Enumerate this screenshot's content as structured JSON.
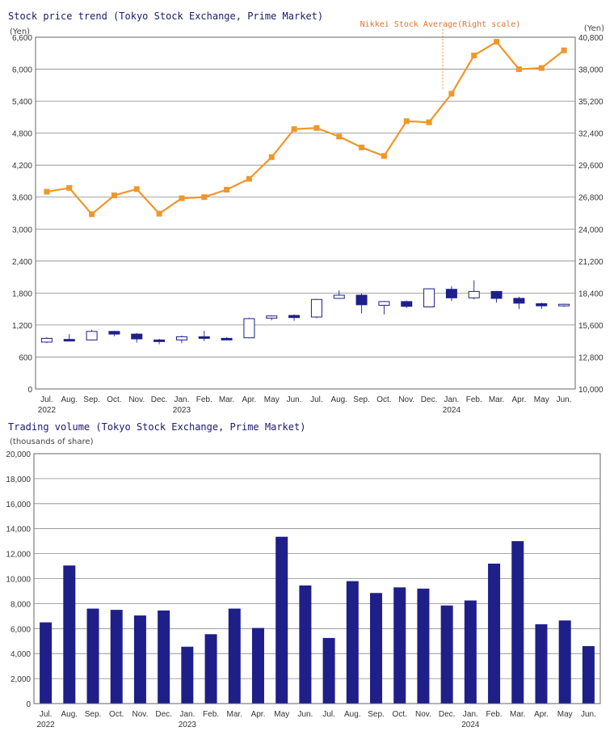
{
  "colors": {
    "navy": "#1f1f8a",
    "orange": "#f0962a",
    "annotation": "#e8722a",
    "title": "#1a1a6e"
  },
  "chart_data": [
    {
      "type": "candlestick",
      "title": "Stock price trend (Tokyo Stock Exchange, Prime Market)",
      "ylabel": "(Yen)",
      "y2label": "(Yen)",
      "ylim": [
        0,
        6600
      ],
      "y2lim": [
        10000,
        40800
      ],
      "yticks": [
        "0",
        "600",
        "1,200",
        "1,800",
        "2,400",
        "3,000",
        "3,600",
        "4,200",
        "4,800",
        "5,400",
        "6,000",
        "6,600"
      ],
      "y2ticks": [
        "10,000",
        "12,800",
        "15,600",
        "18,400",
        "21,200",
        "24,000",
        "26,800",
        "29,600",
        "32,400",
        "35,200",
        "38,000",
        "40,800"
      ],
      "categories": [
        "Jul.",
        "Aug.",
        "Sep.",
        "Oct.",
        "Nov.",
        "Dec.",
        "Jan.",
        "Feb.",
        "Mar.",
        "Apr.",
        "May",
        "Jun.",
        "Jul.",
        "Aug.",
        "Sep.",
        "Oct.",
        "Nov.",
        "Dec.",
        "Jan.",
        "Feb.",
        "Mar.",
        "Apr.",
        "May",
        "Jun."
      ],
      "year_labels": [
        {
          "index": 0,
          "label": "2022"
        },
        {
          "index": 6,
          "label": "2023"
        },
        {
          "index": 18,
          "label": "2024"
        }
      ],
      "candles": [
        {
          "open": 880,
          "close": 950,
          "high": 970,
          "low": 860
        },
        {
          "open": 930,
          "close": 900,
          "high": 1030,
          "low": 890
        },
        {
          "open": 920,
          "close": 1080,
          "high": 1110,
          "low": 910
        },
        {
          "open": 1080,
          "close": 1030,
          "high": 1090,
          "low": 990
        },
        {
          "open": 1030,
          "close": 940,
          "high": 1050,
          "low": 870
        },
        {
          "open": 920,
          "close": 910,
          "high": 940,
          "low": 840
        },
        {
          "open": 920,
          "close": 980,
          "high": 1000,
          "low": 860
        },
        {
          "open": 980,
          "close": 950,
          "high": 1090,
          "low": 900
        },
        {
          "open": 950,
          "close": 930,
          "high": 970,
          "low": 920
        },
        {
          "open": 960,
          "close": 1320,
          "high": 1340,
          "low": 950
        },
        {
          "open": 1330,
          "close": 1370,
          "high": 1380,
          "low": 1290
        },
        {
          "open": 1380,
          "close": 1340,
          "high": 1400,
          "low": 1280
        },
        {
          "open": 1350,
          "close": 1680,
          "high": 1690,
          "low": 1330
        },
        {
          "open": 1700,
          "close": 1760,
          "high": 1850,
          "low": 1690
        },
        {
          "open": 1760,
          "close": 1580,
          "high": 1790,
          "low": 1420
        },
        {
          "open": 1570,
          "close": 1640,
          "high": 1650,
          "low": 1400
        },
        {
          "open": 1640,
          "close": 1550,
          "high": 1660,
          "low": 1520
        },
        {
          "open": 1540,
          "close": 1880,
          "high": 1890,
          "low": 1530
        },
        {
          "open": 1870,
          "close": 1710,
          "high": 1930,
          "low": 1650
        },
        {
          "open": 1710,
          "close": 1830,
          "high": 2040,
          "low": 1680
        },
        {
          "open": 1830,
          "close": 1700,
          "high": 1840,
          "low": 1620
        },
        {
          "open": 1700,
          "close": 1610,
          "high": 1730,
          "low": 1500
        },
        {
          "open": 1600,
          "close": 1560,
          "high": 1620,
          "low": 1500
        },
        {
          "open": 1560,
          "close": 1590,
          "high": 1600,
          "low": 1540
        }
      ],
      "nikkei_series": {
        "name": "Nikkei Stock Average(Right scale)",
        "axis": "right",
        "values": [
          27270,
          27600,
          25300,
          26950,
          27500,
          25350,
          26700,
          26800,
          27450,
          28400,
          30300,
          32750,
          32850,
          32100,
          31150,
          30400,
          33450,
          33350,
          35850,
          39200,
          40400,
          38000,
          38100,
          39650
        ]
      }
    },
    {
      "type": "bar",
      "title": "Trading volume (Tokyo Stock Exchange, Prime Market)",
      "ylabel": "(thousands of share)",
      "ylim": [
        0,
        20000
      ],
      "yticks": [
        "0",
        "2,000",
        "4,000",
        "6,000",
        "8,000",
        "10,000",
        "12,000",
        "14,000",
        "16,000",
        "18,000",
        "20,000"
      ],
      "categories": [
        "Jul.",
        "Aug.",
        "Sep.",
        "Oct.",
        "Nov.",
        "Dec.",
        "Jan.",
        "Feb.",
        "Mar.",
        "Apr.",
        "May",
        "Jun.",
        "Jul.",
        "Aug.",
        "Sep.",
        "Oct.",
        "Nov.",
        "Dec.",
        "Jan.",
        "Feb.",
        "Mar.",
        "Apr.",
        "May",
        "Jun."
      ],
      "year_labels": [
        {
          "index": 0,
          "label": "2022"
        },
        {
          "index": 6,
          "label": "2023"
        },
        {
          "index": 18,
          "label": "2024"
        }
      ],
      "values": [
        6500,
        11050,
        7600,
        7500,
        7050,
        7450,
        4550,
        5550,
        7600,
        6050,
        13350,
        9450,
        5250,
        9800,
        8850,
        9300,
        9200,
        7850,
        8250,
        11200,
        13000,
        6350,
        6650,
        4600
      ]
    }
  ]
}
